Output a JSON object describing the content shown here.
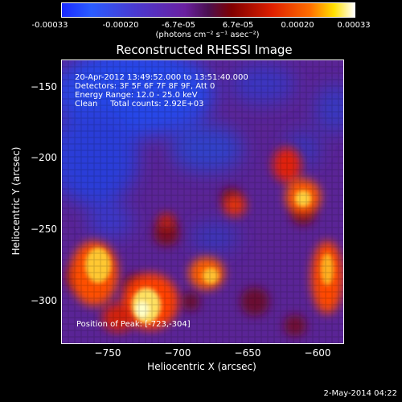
{
  "colorbar": {
    "tick_labels": [
      "-0.00033",
      "-0.00020",
      "-6.7e-05",
      "6.7e-05",
      "0.00020",
      "0.00033"
    ],
    "unit_label": "(photons cm⁻² s⁻¹ asec⁻²)"
  },
  "image": {
    "title": "Reconstructed RHESSI Image",
    "info_lines": [
      "20-Apr-2012 13:49:52.000 to 13:51:40.000",
      "Detectors: 3F 5F 6F 7F 8F 9F, Att 0",
      "Energy Range: 12.0 - 25.0 keV",
      "Clean     Total counts: 2.92E+03"
    ],
    "peak_text": "Position of Peak: [-723,-304]"
  },
  "axes": {
    "x_label": "Heliocentric X (arcsec)",
    "y_label": "Heliocentric Y (arcsec)",
    "x_ticks": [
      "−750",
      "−700",
      "−650",
      "−600"
    ],
    "y_ticks": [
      "−150",
      "−200",
      "−250",
      "−300"
    ]
  },
  "footer": {
    "timestamp": "2-May-2014 04:22"
  },
  "colors": {
    "background": "#000000",
    "low": "#1a3cff",
    "mid": "#6a1fa8",
    "high": "#ff4a00",
    "peak": "#ffffb0"
  }
}
